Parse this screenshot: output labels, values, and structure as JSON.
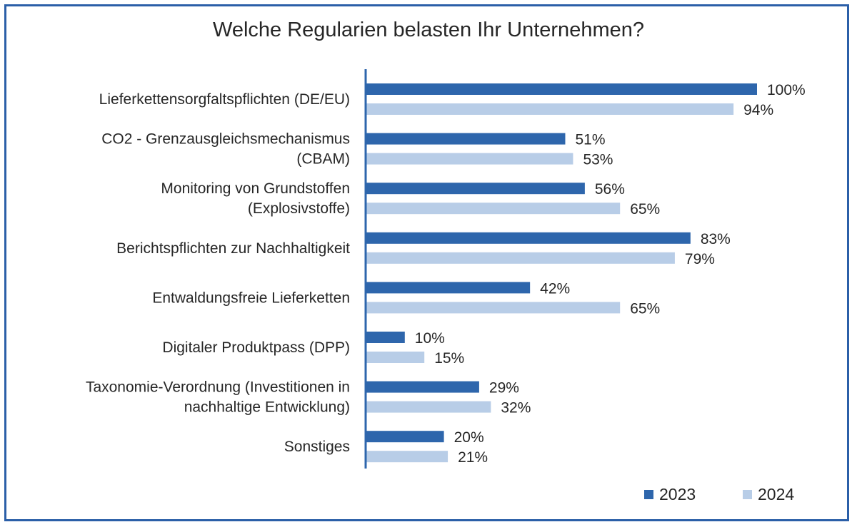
{
  "colors": {
    "frame": "#2b5fa8",
    "series_2023": "#2e66ac",
    "series_2024": "#b8cde7",
    "axis": "#2e66ac",
    "text": "#262626"
  },
  "chart_data": {
    "type": "bar",
    "orientation": "horizontal",
    "title": "Welche Regularien belasten Ihr Unternehmen?",
    "xlim": [
      0,
      100
    ],
    "grid": false,
    "legend": "bottom-right",
    "categories": [
      [
        "Lieferkettensorgfaltspflichten (DE/EU)"
      ],
      [
        "CO2 - Grenzausgleichsmechanismus",
        "(CBAM)"
      ],
      [
        "Monitoring von Grundstoffen",
        "(Explosivstoffe)"
      ],
      [
        "Berichtspflichten zur Nachhaltigkeit"
      ],
      [
        "Entwaldungsfreie Lieferketten"
      ],
      [
        "Digitaler Produktpass (DPP)"
      ],
      [
        "Taxonomie-Verordnung (Investitionen in",
        "nachhaltige Entwicklung)"
      ],
      [
        "Sonstiges"
      ]
    ],
    "series": [
      {
        "name": "2023",
        "values": [
          100,
          51,
          56,
          83,
          42,
          10,
          29,
          20
        ],
        "labels": [
          "100%",
          "51%",
          "56%",
          "83%",
          "42%",
          "10%",
          "29%",
          "20%"
        ]
      },
      {
        "name": "2024",
        "values": [
          94,
          53,
          65,
          79,
          65,
          15,
          32,
          21
        ],
        "labels": [
          "94%",
          "53%",
          "65%",
          "79%",
          "65%",
          "15%",
          "32%",
          "21%"
        ]
      }
    ]
  }
}
